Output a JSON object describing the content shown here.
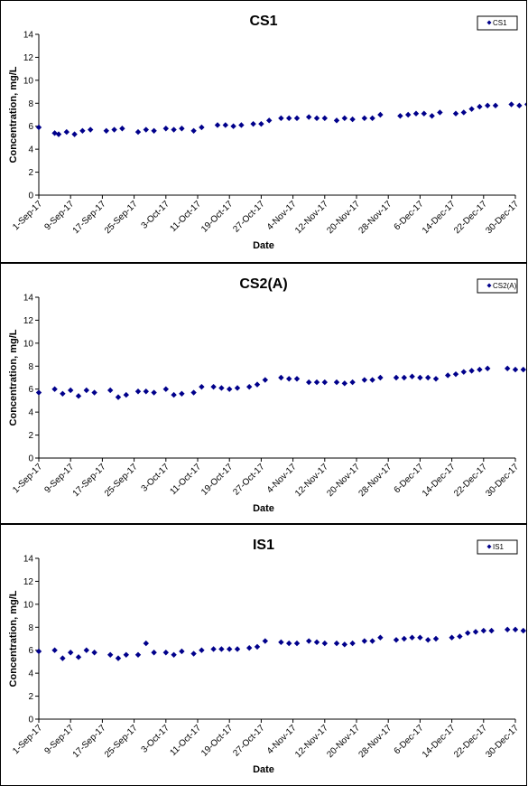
{
  "chart_data": [
    {
      "type": "scatter",
      "title": "CS1",
      "xlabel": "Date",
      "ylabel": "Concentration, mg/L",
      "ylim": [
        0,
        14
      ],
      "yticks": [
        0,
        2,
        4,
        6,
        8,
        10,
        12,
        14
      ],
      "x_range": [
        "2017-09-01",
        "2017-12-30"
      ],
      "x_ticks": [
        "1-Sep-17",
        "9-Sep-17",
        "17-Sep-17",
        "25-Sep-17",
        "3-Oct-17",
        "11-Oct-17",
        "19-Oct-17",
        "27-Oct-17",
        "4-Nov-17",
        "12-Nov-17",
        "20-Nov-17",
        "28-Nov-17",
        "6-Dec-17",
        "14-Dec-17",
        "22-Dec-17",
        "30-Dec-17"
      ],
      "legend_position": "top-right",
      "grid": false,
      "marker_color": "#00008B",
      "series": [
        {
          "name": "CS1",
          "points": [
            [
              "2017-09-01",
              5.9
            ],
            [
              "2017-09-05",
              5.4
            ],
            [
              "2017-09-06",
              5.3
            ],
            [
              "2017-09-08",
              5.5
            ],
            [
              "2017-09-10",
              5.3
            ],
            [
              "2017-09-12",
              5.6
            ],
            [
              "2017-09-14",
              5.7
            ],
            [
              "2017-09-18",
              5.6
            ],
            [
              "2017-09-20",
              5.7
            ],
            [
              "2017-09-22",
              5.8
            ],
            [
              "2017-09-26",
              5.5
            ],
            [
              "2017-09-28",
              5.7
            ],
            [
              "2017-09-30",
              5.6
            ],
            [
              "2017-10-03",
              5.8
            ],
            [
              "2017-10-05",
              5.7
            ],
            [
              "2017-10-07",
              5.8
            ],
            [
              "2017-10-10",
              5.6
            ],
            [
              "2017-10-12",
              5.9
            ],
            [
              "2017-10-16",
              6.1
            ],
            [
              "2017-10-18",
              6.1
            ],
            [
              "2017-10-20",
              6.0
            ],
            [
              "2017-10-22",
              6.1
            ],
            [
              "2017-10-25",
              6.2
            ],
            [
              "2017-10-27",
              6.2
            ],
            [
              "2017-10-29",
              6.5
            ],
            [
              "2017-11-01",
              6.7
            ],
            [
              "2017-11-03",
              6.7
            ],
            [
              "2017-11-05",
              6.7
            ],
            [
              "2017-11-08",
              6.8
            ],
            [
              "2017-11-10",
              6.7
            ],
            [
              "2017-11-12",
              6.7
            ],
            [
              "2017-11-15",
              6.5
            ],
            [
              "2017-11-17",
              6.7
            ],
            [
              "2017-11-19",
              6.6
            ],
            [
              "2017-11-22",
              6.7
            ],
            [
              "2017-11-24",
              6.7
            ],
            [
              "2017-11-26",
              7.0
            ],
            [
              "2017-12-01",
              6.9
            ],
            [
              "2017-12-03",
              7.0
            ],
            [
              "2017-12-05",
              7.1
            ],
            [
              "2017-12-07",
              7.1
            ],
            [
              "2017-12-09",
              6.9
            ],
            [
              "2017-12-11",
              7.2
            ],
            [
              "2017-12-15",
              7.1
            ],
            [
              "2017-12-17",
              7.2
            ],
            [
              "2017-12-19",
              7.5
            ],
            [
              "2017-12-21",
              7.7
            ],
            [
              "2017-12-23",
              7.8
            ],
            [
              "2017-12-25",
              7.8
            ],
            [
              "2017-12-29",
              7.9
            ],
            [
              "2017-12-31",
              7.8
            ],
            [
              "2018-01-02",
              7.9
            ]
          ]
        }
      ]
    },
    {
      "type": "scatter",
      "title": "CS2(A)",
      "xlabel": "Date",
      "ylabel": "Concentration, mg/L",
      "ylim": [
        0,
        14
      ],
      "yticks": [
        0,
        2,
        4,
        6,
        8,
        10,
        12,
        14
      ],
      "x_range": [
        "2017-09-01",
        "2017-12-30"
      ],
      "x_ticks": [
        "1-Sep-17",
        "9-Sep-17",
        "17-Sep-17",
        "25-Sep-17",
        "3-Oct-17",
        "11-Oct-17",
        "19-Oct-17",
        "27-Oct-17",
        "4-Nov-17",
        "12-Nov-17",
        "20-Nov-17",
        "28-Nov-17",
        "6-Dec-17",
        "14-Dec-17",
        "22-Dec-17",
        "30-Dec-17"
      ],
      "legend_position": "top-right",
      "grid": false,
      "marker_color": "#00008B",
      "series": [
        {
          "name": "CS2(A)",
          "points": [
            [
              "2017-09-01",
              5.7
            ],
            [
              "2017-09-05",
              6.0
            ],
            [
              "2017-09-07",
              5.6
            ],
            [
              "2017-09-09",
              5.9
            ],
            [
              "2017-09-11",
              5.4
            ],
            [
              "2017-09-13",
              5.9
            ],
            [
              "2017-09-15",
              5.7
            ],
            [
              "2017-09-19",
              5.9
            ],
            [
              "2017-09-21",
              5.3
            ],
            [
              "2017-09-23",
              5.5
            ],
            [
              "2017-09-26",
              5.8
            ],
            [
              "2017-09-28",
              5.8
            ],
            [
              "2017-09-30",
              5.7
            ],
            [
              "2017-10-03",
              6.0
            ],
            [
              "2017-10-05",
              5.5
            ],
            [
              "2017-10-07",
              5.6
            ],
            [
              "2017-10-10",
              5.7
            ],
            [
              "2017-10-12",
              6.2
            ],
            [
              "2017-10-15",
              6.2
            ],
            [
              "2017-10-17",
              6.1
            ],
            [
              "2017-10-19",
              6.0
            ],
            [
              "2017-10-21",
              6.1
            ],
            [
              "2017-10-24",
              6.2
            ],
            [
              "2017-10-26",
              6.4
            ],
            [
              "2017-10-28",
              6.8
            ],
            [
              "2017-11-01",
              7.0
            ],
            [
              "2017-11-03",
              6.9
            ],
            [
              "2017-11-05",
              6.9
            ],
            [
              "2017-11-08",
              6.6
            ],
            [
              "2017-11-10",
              6.6
            ],
            [
              "2017-11-12",
              6.6
            ],
            [
              "2017-11-15",
              6.6
            ],
            [
              "2017-11-17",
              6.5
            ],
            [
              "2017-11-19",
              6.6
            ],
            [
              "2017-11-22",
              6.8
            ],
            [
              "2017-11-24",
              6.8
            ],
            [
              "2017-11-26",
              7.0
            ],
            [
              "2017-11-30",
              7.0
            ],
            [
              "2017-12-02",
              7.0
            ],
            [
              "2017-12-04",
              7.1
            ],
            [
              "2017-12-06",
              7.0
            ],
            [
              "2017-12-08",
              7.0
            ],
            [
              "2017-12-10",
              6.9
            ],
            [
              "2017-12-13",
              7.2
            ],
            [
              "2017-12-15",
              7.3
            ],
            [
              "2017-12-17",
              7.5
            ],
            [
              "2017-12-19",
              7.6
            ],
            [
              "2017-12-21",
              7.7
            ],
            [
              "2017-12-23",
              7.8
            ],
            [
              "2017-12-28",
              7.8
            ],
            [
              "2017-12-30",
              7.7
            ],
            [
              "2018-01-01",
              7.7
            ]
          ]
        }
      ]
    },
    {
      "type": "scatter",
      "title": "IS1",
      "xlabel": "Date",
      "ylabel": "Concentration, mg/L",
      "ylim": [
        0,
        14
      ],
      "yticks": [
        0,
        2,
        4,
        6,
        8,
        10,
        12,
        14
      ],
      "x_range": [
        "2017-09-01",
        "2017-12-30"
      ],
      "x_ticks": [
        "1-Sep-17",
        "9-Sep-17",
        "17-Sep-17",
        "25-Sep-17",
        "3-Oct-17",
        "11-Oct-17",
        "19-Oct-17",
        "27-Oct-17",
        "4-Nov-17",
        "12-Nov-17",
        "20-Nov-17",
        "28-Nov-17",
        "6-Dec-17",
        "14-Dec-17",
        "22-Dec-17",
        "30-Dec-17"
      ],
      "legend_position": "top-right",
      "grid": false,
      "marker_color": "#00008B",
      "series": [
        {
          "name": "IS1",
          "points": [
            [
              "2017-09-01",
              5.9
            ],
            [
              "2017-09-05",
              6.0
            ],
            [
              "2017-09-07",
              5.3
            ],
            [
              "2017-09-09",
              5.8
            ],
            [
              "2017-09-11",
              5.4
            ],
            [
              "2017-09-13",
              6.0
            ],
            [
              "2017-09-15",
              5.8
            ],
            [
              "2017-09-19",
              5.6
            ],
            [
              "2017-09-21",
              5.3
            ],
            [
              "2017-09-23",
              5.6
            ],
            [
              "2017-09-26",
              5.6
            ],
            [
              "2017-09-28",
              6.6
            ],
            [
              "2017-09-30",
              5.8
            ],
            [
              "2017-10-03",
              5.8
            ],
            [
              "2017-10-05",
              5.6
            ],
            [
              "2017-10-07",
              5.9
            ],
            [
              "2017-10-10",
              5.7
            ],
            [
              "2017-10-12",
              6.0
            ],
            [
              "2017-10-15",
              6.1
            ],
            [
              "2017-10-17",
              6.1
            ],
            [
              "2017-10-19",
              6.1
            ],
            [
              "2017-10-21",
              6.1
            ],
            [
              "2017-10-24",
              6.2
            ],
            [
              "2017-10-26",
              6.3
            ],
            [
              "2017-10-28",
              6.8
            ],
            [
              "2017-11-01",
              6.7
            ],
            [
              "2017-11-03",
              6.6
            ],
            [
              "2017-11-05",
              6.6
            ],
            [
              "2017-11-08",
              6.8
            ],
            [
              "2017-11-10",
              6.7
            ],
            [
              "2017-11-12",
              6.6
            ],
            [
              "2017-11-15",
              6.6
            ],
            [
              "2017-11-17",
              6.5
            ],
            [
              "2017-11-19",
              6.6
            ],
            [
              "2017-11-22",
              6.8
            ],
            [
              "2017-11-24",
              6.8
            ],
            [
              "2017-11-26",
              7.1
            ],
            [
              "2017-11-30",
              6.9
            ],
            [
              "2017-12-02",
              7.0
            ],
            [
              "2017-12-04",
              7.1
            ],
            [
              "2017-12-06",
              7.1
            ],
            [
              "2017-12-08",
              6.9
            ],
            [
              "2017-12-10",
              7.0
            ],
            [
              "2017-12-14",
              7.1
            ],
            [
              "2017-12-16",
              7.2
            ],
            [
              "2017-12-18",
              7.5
            ],
            [
              "2017-12-20",
              7.6
            ],
            [
              "2017-12-22",
              7.7
            ],
            [
              "2017-12-24",
              7.7
            ],
            [
              "2017-12-28",
              7.8
            ],
            [
              "2017-12-30",
              7.8
            ],
            [
              "2018-01-01",
              7.7
            ]
          ]
        }
      ]
    }
  ]
}
